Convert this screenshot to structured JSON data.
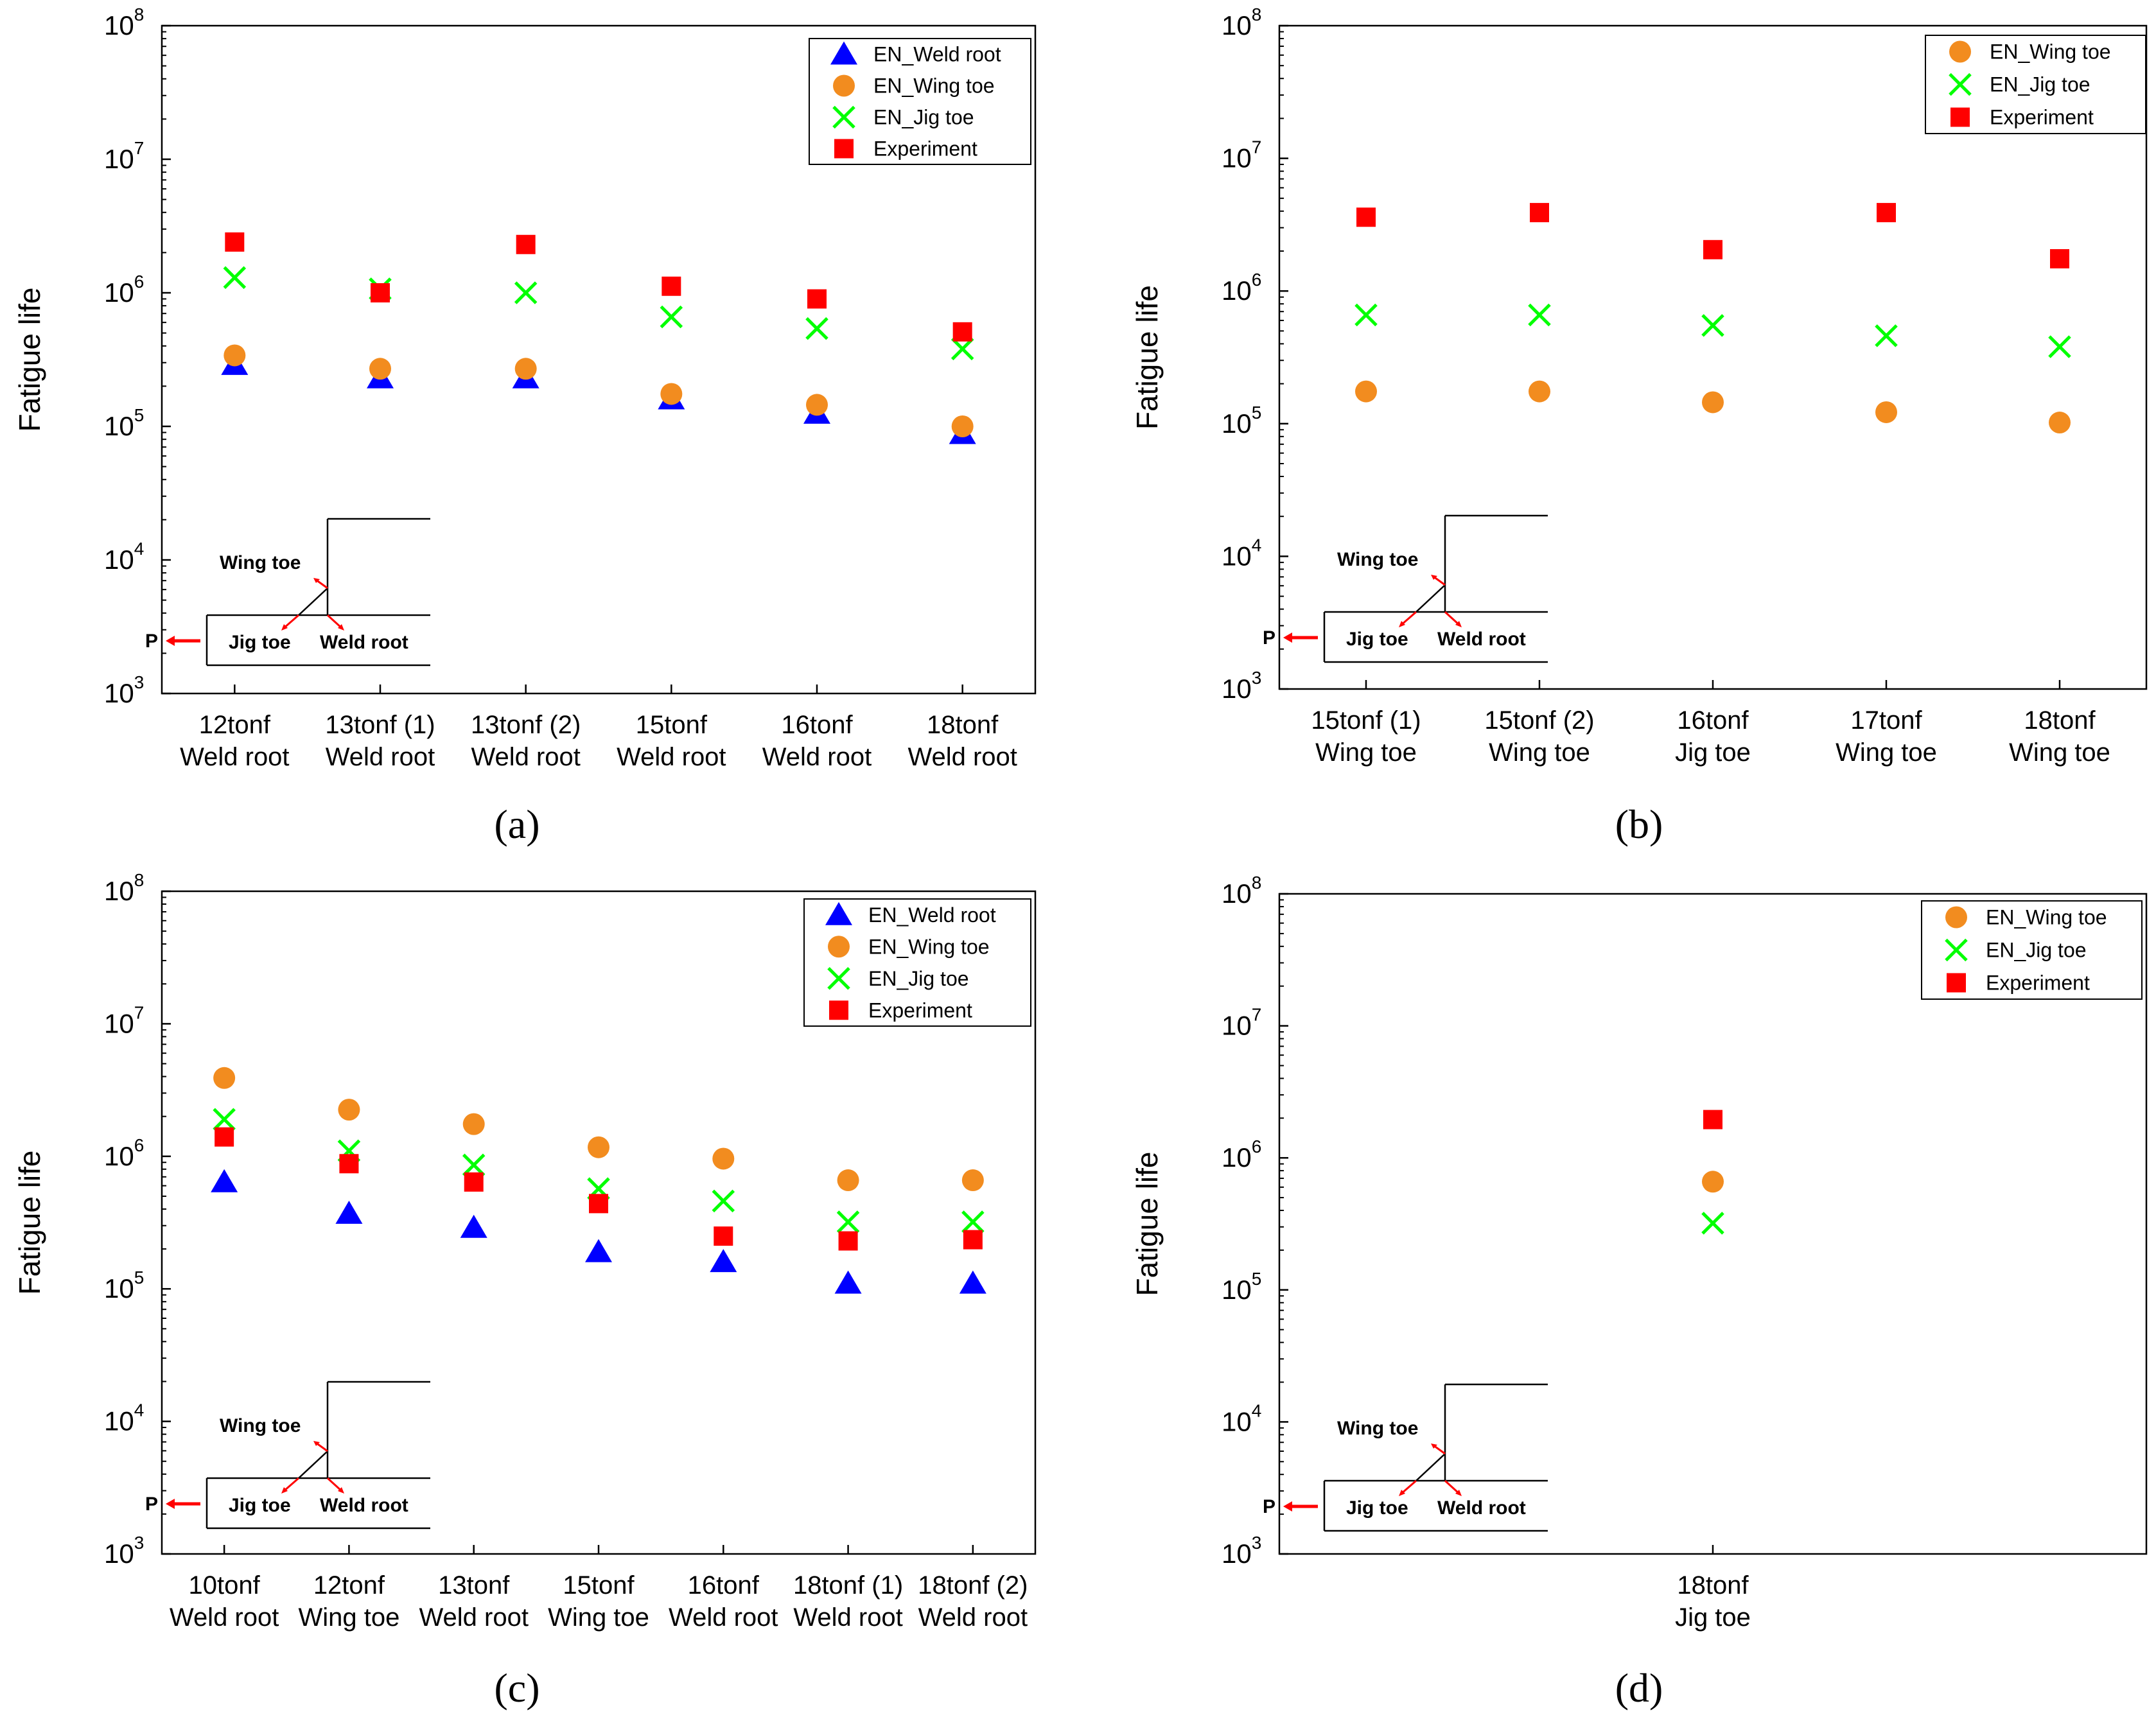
{
  "colors": {
    "weld_root": "#0000ff",
    "wing_toe": "#f28c1f",
    "jig_toe": "#00ff00",
    "experiment": "#ff0000",
    "diagram_arrow": "#ff0000"
  },
  "common": {
    "ylabel": "Fatigue life",
    "ytick_base": "10",
    "ytick_exponents": [
      "3",
      "4",
      "5",
      "6",
      "7",
      "8"
    ],
    "diagram": {
      "wing_toe": "Wing toe",
      "jig_toe": "Jig toe",
      "weld_root": "Weld root",
      "p": "P"
    }
  },
  "chart_data": [
    {
      "panel": "a",
      "panel_label": "(a)",
      "type": "scatter",
      "yscale": "log",
      "ylim": [
        1000,
        100000000
      ],
      "ylabel": "Fatigue life",
      "legend_position": "top-right",
      "categories": [
        [
          "12tonf",
          "Weld root"
        ],
        [
          "13tonf (1)",
          "Weld root"
        ],
        [
          "13tonf (2)",
          "Weld root"
        ],
        [
          "15tonf",
          "Weld root"
        ],
        [
          "16tonf",
          "Weld root"
        ],
        [
          "18tonf",
          "Weld root"
        ]
      ],
      "series": [
        {
          "name": "EN_Weld root",
          "key": "weld_root",
          "marker": "triangle",
          "values": [
            290000,
            230000,
            230000,
            160000,
            125000,
            88000
          ]
        },
        {
          "name": "EN_Wing toe",
          "key": "wing_toe",
          "marker": "circle",
          "values": [
            340000,
            270000,
            270000,
            175000,
            145000,
            100000
          ]
        },
        {
          "name": "EN_Jig toe",
          "key": "jig_toe",
          "marker": "x",
          "values": [
            1300000,
            1070000,
            1000000,
            660000,
            540000,
            380000
          ]
        },
        {
          "name": "Experiment",
          "key": "experiment",
          "marker": "square",
          "values": [
            2400000,
            1000000,
            2300000,
            1120000,
            900000,
            510000
          ]
        }
      ]
    },
    {
      "panel": "b",
      "panel_label": "(b)",
      "type": "scatter",
      "yscale": "log",
      "ylim": [
        1000,
        100000000
      ],
      "ylabel": "Fatigue life",
      "legend_position": "top-right",
      "categories": [
        [
          "15tonf (1)",
          "Wing toe"
        ],
        [
          "15tonf (2)",
          "Wing toe"
        ],
        [
          "16tonf",
          "Jig toe"
        ],
        [
          "17tonf",
          "Wing toe"
        ],
        [
          "18tonf",
          "Wing toe"
        ]
      ],
      "series": [
        {
          "name": "EN_Wing toe",
          "key": "wing_toe",
          "marker": "circle",
          "values": [
            175000,
            175000,
            145000,
            122000,
            102000
          ]
        },
        {
          "name": "EN_Jig toe",
          "key": "jig_toe",
          "marker": "x",
          "values": [
            660000,
            660000,
            550000,
            460000,
            380000
          ]
        },
        {
          "name": "Experiment",
          "key": "experiment",
          "marker": "square",
          "values": [
            3600000,
            3900000,
            2050000,
            3900000,
            1750000
          ]
        }
      ]
    },
    {
      "panel": "c",
      "panel_label": "(c)",
      "type": "scatter",
      "yscale": "log",
      "ylim": [
        1000,
        100000000
      ],
      "ylabel": "Fatigue life",
      "legend_position": "top-right",
      "categories": [
        [
          "10tonf",
          "Weld root"
        ],
        [
          "12tonf",
          "Wing toe"
        ],
        [
          "13tonf",
          "Weld root"
        ],
        [
          "15tonf",
          "Wing toe"
        ],
        [
          "16tonf",
          "Weld root"
        ],
        [
          "18tonf (1)",
          "Weld root"
        ],
        [
          "18tonf (2)",
          "Weld root"
        ]
      ],
      "series": [
        {
          "name": "EN_Weld root",
          "key": "weld_root",
          "marker": "triangle",
          "values": [
            640000,
            370000,
            290000,
            190000,
            160000,
            110000,
            110000
          ]
        },
        {
          "name": "EN_Wing toe",
          "key": "wing_toe",
          "marker": "circle",
          "values": [
            3900000,
            2250000,
            1750000,
            1170000,
            960000,
            660000,
            660000
          ]
        },
        {
          "name": "EN_Jig toe",
          "key": "jig_toe",
          "marker": "x",
          "values": [
            1900000,
            1100000,
            860000,
            570000,
            460000,
            320000,
            320000
          ]
        },
        {
          "name": "Experiment",
          "key": "experiment",
          "marker": "square",
          "values": [
            1400000,
            880000,
            640000,
            440000,
            250000,
            230000,
            235000
          ]
        }
      ]
    },
    {
      "panel": "d",
      "panel_label": "(d)",
      "type": "scatter",
      "yscale": "log",
      "ylim": [
        1000,
        100000000
      ],
      "ylabel": "Fatigue life",
      "legend_position": "top-right",
      "categories": [
        [
          "18tonf",
          "Jig toe"
        ]
      ],
      "series": [
        {
          "name": "EN_Wing toe",
          "key": "wing_toe",
          "marker": "circle",
          "values": [
            660000
          ]
        },
        {
          "name": "EN_Jig toe",
          "key": "jig_toe",
          "marker": "x",
          "values": [
            320000
          ]
        },
        {
          "name": "Experiment",
          "key": "experiment",
          "marker": "square",
          "values": [
            1950000
          ]
        }
      ]
    }
  ]
}
